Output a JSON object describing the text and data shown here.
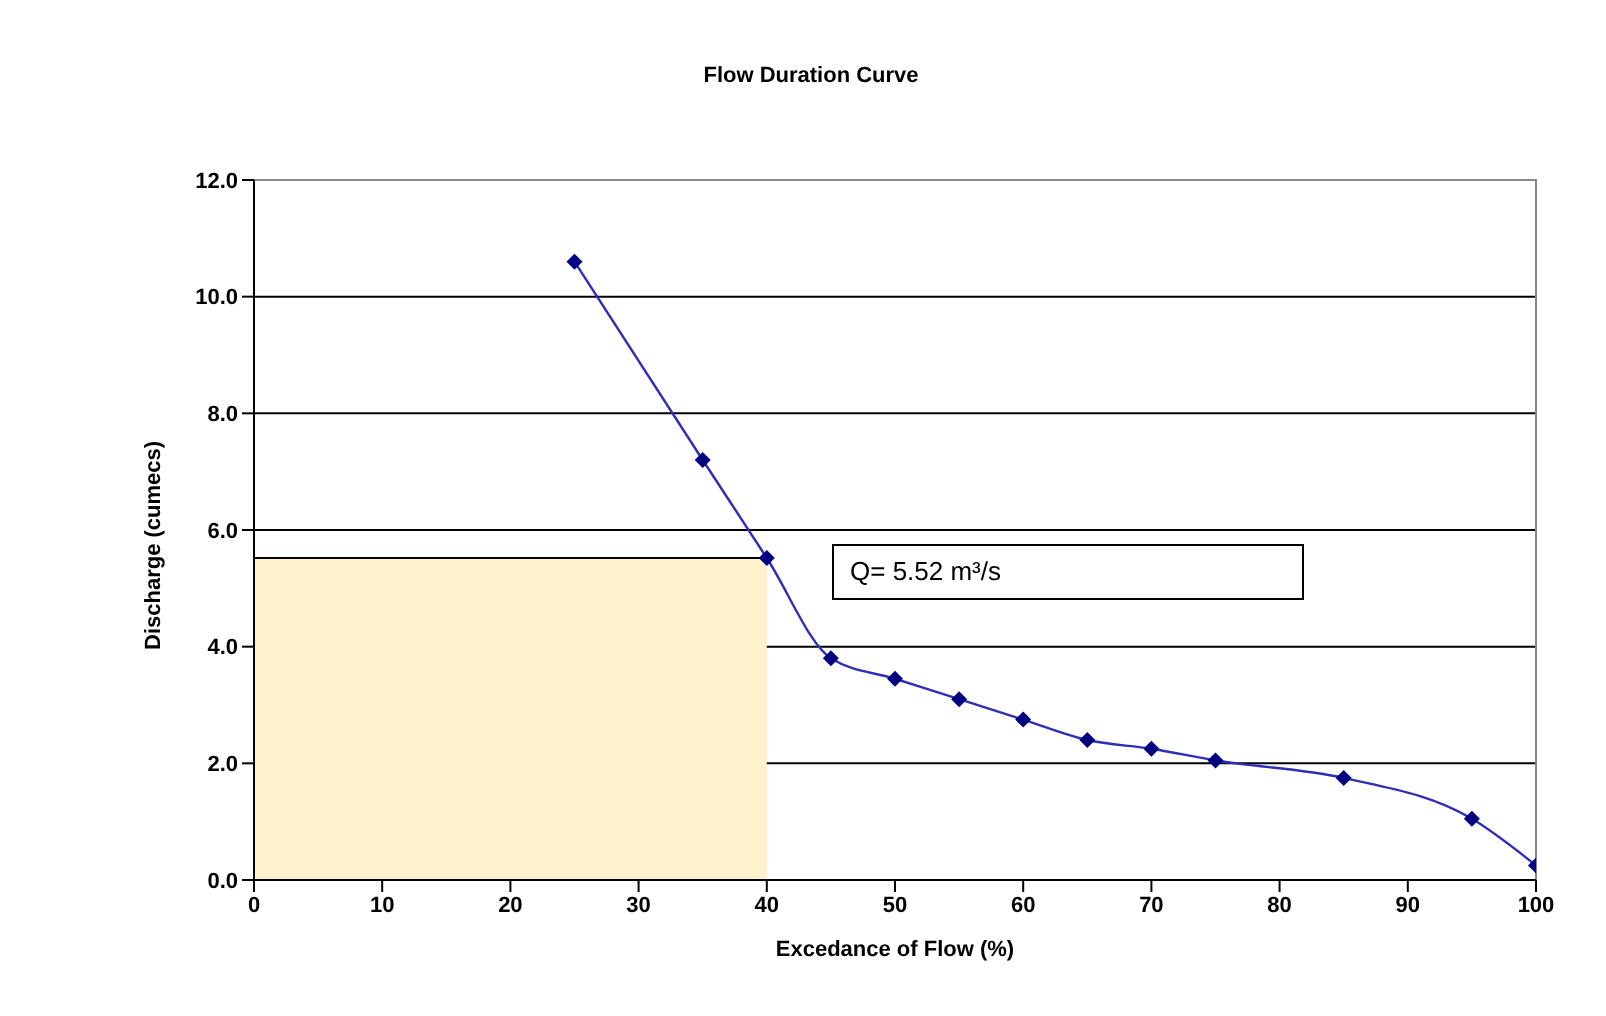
{
  "chart_data": {
    "type": "line",
    "title": "Flow Duration Curve",
    "xlabel": "Excedance of Flow (%)",
    "ylabel": "Discharge (cumecs)",
    "series": [
      {
        "type": "area",
        "color": "#fff2cc",
        "x": [
          0,
          40
        ],
        "values": [
          5.52,
          5.52
        ]
      },
      {
        "color": "#2e2eb8",
        "x": [
          25,
          35,
          40,
          45,
          50,
          55,
          60,
          65,
          70,
          75,
          85,
          95,
          100
        ],
        "values": [
          10.6,
          7.2,
          5.52,
          3.8,
          3.45,
          3.1,
          2.75,
          2.4,
          2.25,
          2.05,
          1.75,
          1.05,
          0.25
        ]
      }
    ],
    "xlim": [
      0,
      100
    ],
    "xticks": [
      0,
      10,
      20,
      30,
      40,
      50,
      60,
      70,
      80,
      90,
      100
    ],
    "ylim": [
      0,
      12
    ],
    "yticks": [
      {
        "value": 0,
        "label": "0.0"
      },
      {
        "value": 2,
        "label": "2.0"
      },
      {
        "value": 4,
        "label": "4.0"
      },
      {
        "value": 6,
        "label": "6.0"
      },
      {
        "value": 8,
        "label": "8.0"
      },
      {
        "value": 10,
        "label": "10.0"
      },
      {
        "value": 12,
        "label": "12.0"
      }
    ],
    "grid": "y",
    "marker": "diamond",
    "legend": false,
    "annotations": [
      "Q= 5.52 m³/s"
    ]
  }
}
